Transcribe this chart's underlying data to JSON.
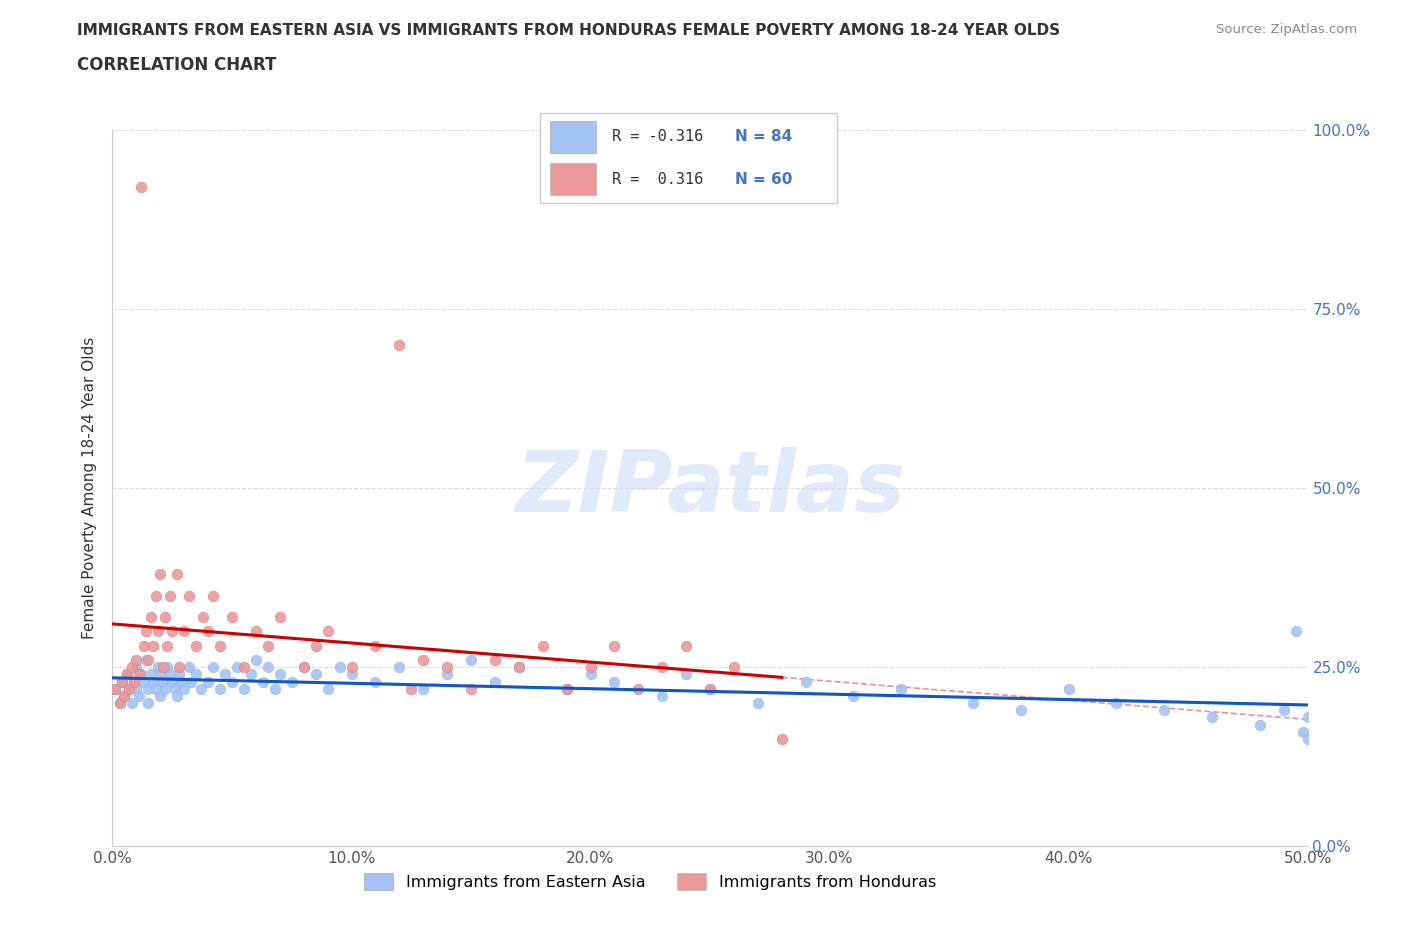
{
  "title": "IMMIGRANTS FROM EASTERN ASIA VS IMMIGRANTS FROM HONDURAS FEMALE POVERTY AMONG 18-24 YEAR OLDS",
  "subtitle": "CORRELATION CHART",
  "source": "Source: ZipAtlas.com",
  "ylabel": "Female Poverty Among 18-24 Year Olds",
  "xlim": [
    0.0,
    0.5
  ],
  "ylim": [
    0.0,
    1.0
  ],
  "blue_color": "#a4c2f4",
  "pink_color": "#ea9999",
  "blue_line_color": "#1155cc",
  "pink_line_color": "#cc0000",
  "pink_dash_color": "#e06666",
  "blue_dash_color": "#9fc5e8",
  "grid_color": "#dddddd",
  "watermark_color": "#c9daf8",
  "legend_R_blue": "R = -0.316",
  "legend_N_blue": "N = 84",
  "legend_R_pink": "R =  0.316",
  "legend_N_pink": "N = 60",
  "blue_label": "Immigrants from Eastern Asia",
  "pink_label": "Immigrants from Honduras",
  "blue_scatter_x": [
    0.001,
    0.003,
    0.004,
    0.005,
    0.006,
    0.007,
    0.008,
    0.009,
    0.01,
    0.01,
    0.011,
    0.012,
    0.013,
    0.014,
    0.015,
    0.015,
    0.016,
    0.017,
    0.018,
    0.019,
    0.02,
    0.02,
    0.021,
    0.022,
    0.023,
    0.024,
    0.025,
    0.026,
    0.027,
    0.028,
    0.029,
    0.03,
    0.032,
    0.033,
    0.035,
    0.037,
    0.04,
    0.042,
    0.045,
    0.047,
    0.05,
    0.052,
    0.055,
    0.058,
    0.06,
    0.063,
    0.065,
    0.068,
    0.07,
    0.075,
    0.08,
    0.085,
    0.09,
    0.095,
    0.1,
    0.11,
    0.12,
    0.13,
    0.14,
    0.15,
    0.16,
    0.17,
    0.19,
    0.2,
    0.21,
    0.23,
    0.24,
    0.25,
    0.27,
    0.29,
    0.31,
    0.33,
    0.36,
    0.38,
    0.4,
    0.42,
    0.44,
    0.46,
    0.48,
    0.49,
    0.495,
    0.498,
    0.5,
    0.5
  ],
  "blue_scatter_y": [
    0.22,
    0.2,
    0.23,
    0.21,
    0.24,
    0.22,
    0.2,
    0.23,
    0.25,
    0.22,
    0.21,
    0.24,
    0.23,
    0.26,
    0.22,
    0.2,
    0.24,
    0.23,
    0.22,
    0.25,
    0.21,
    0.24,
    0.23,
    0.22,
    0.25,
    0.24,
    0.23,
    0.22,
    0.21,
    0.24,
    0.23,
    0.22,
    0.25,
    0.23,
    0.24,
    0.22,
    0.23,
    0.25,
    0.22,
    0.24,
    0.23,
    0.25,
    0.22,
    0.24,
    0.26,
    0.23,
    0.25,
    0.22,
    0.24,
    0.23,
    0.25,
    0.24,
    0.22,
    0.25,
    0.24,
    0.23,
    0.25,
    0.22,
    0.24,
    0.26,
    0.23,
    0.25,
    0.22,
    0.24,
    0.23,
    0.21,
    0.24,
    0.22,
    0.2,
    0.23,
    0.21,
    0.22,
    0.2,
    0.19,
    0.22,
    0.2,
    0.19,
    0.18,
    0.17,
    0.19,
    0.3,
    0.16,
    0.18,
    0.15
  ],
  "pink_scatter_x": [
    0.001,
    0.003,
    0.004,
    0.005,
    0.006,
    0.007,
    0.008,
    0.009,
    0.01,
    0.011,
    0.012,
    0.013,
    0.014,
    0.015,
    0.016,
    0.017,
    0.018,
    0.019,
    0.02,
    0.021,
    0.022,
    0.023,
    0.024,
    0.025,
    0.027,
    0.028,
    0.03,
    0.032,
    0.035,
    0.038,
    0.04,
    0.042,
    0.045,
    0.05,
    0.055,
    0.06,
    0.065,
    0.07,
    0.08,
    0.085,
    0.09,
    0.1,
    0.11,
    0.12,
    0.125,
    0.13,
    0.14,
    0.15,
    0.16,
    0.17,
    0.18,
    0.19,
    0.2,
    0.21,
    0.22,
    0.23,
    0.24,
    0.25,
    0.26,
    0.28
  ],
  "pink_scatter_y": [
    0.22,
    0.2,
    0.23,
    0.21,
    0.24,
    0.22,
    0.25,
    0.23,
    0.26,
    0.24,
    0.92,
    0.28,
    0.3,
    0.26,
    0.32,
    0.28,
    0.35,
    0.3,
    0.38,
    0.25,
    0.32,
    0.28,
    0.35,
    0.3,
    0.38,
    0.25,
    0.3,
    0.35,
    0.28,
    0.32,
    0.3,
    0.35,
    0.28,
    0.32,
    0.25,
    0.3,
    0.28,
    0.32,
    0.25,
    0.28,
    0.3,
    0.25,
    0.28,
    0.7,
    0.22,
    0.26,
    0.25,
    0.22,
    0.26,
    0.25,
    0.28,
    0.22,
    0.25,
    0.28,
    0.22,
    0.25,
    0.28,
    0.22,
    0.25,
    0.15
  ]
}
